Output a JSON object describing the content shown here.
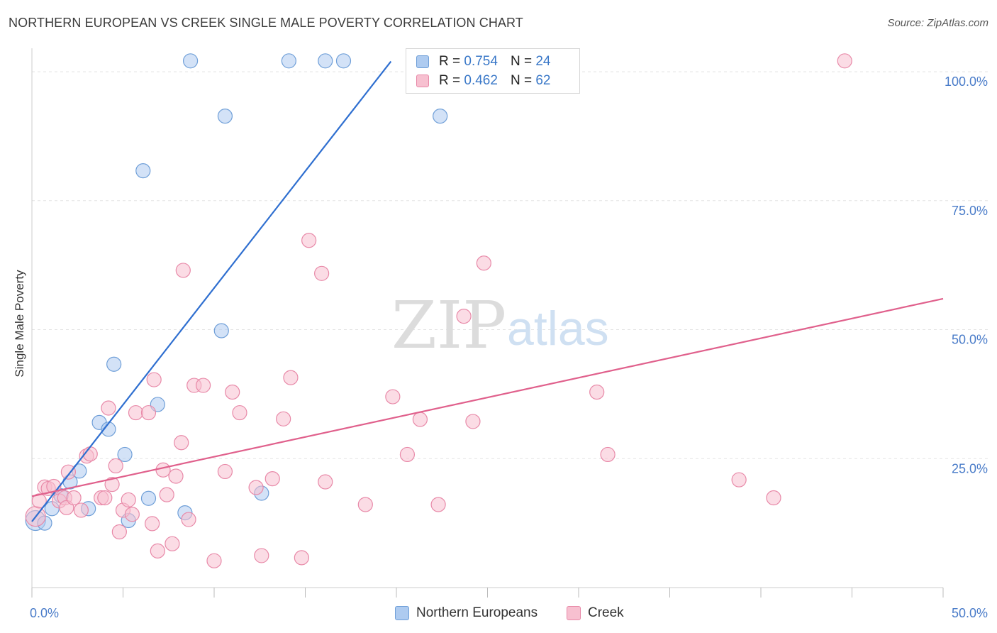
{
  "header": {
    "title": "NORTHERN EUROPEAN VS CREEK SINGLE MALE POVERTY CORRELATION CHART",
    "source": "Source: ZipAtlas.com"
  },
  "watermark": {
    "zip": "ZIP",
    "atlas": "atlas"
  },
  "legend": {
    "rows": [
      {
        "r_label": "R =",
        "r_value": "0.754",
        "n_label": "N =",
        "n_value": "24",
        "color": "#aecbf0",
        "border": "#6f9fd8"
      },
      {
        "r_label": "R =",
        "r_value": "0.462",
        "n_label": "N =",
        "n_value": "62",
        "color": "#f7c0d0",
        "border": "#e889a8"
      }
    ]
  },
  "bottom_legend": [
    {
      "label": "Northern Europeans",
      "color": "#aecbf0",
      "border": "#6f9fd8"
    },
    {
      "label": "Creek",
      "color": "#f7c0d0",
      "border": "#e889a8"
    }
  ],
  "chart_data": {
    "type": "scatter",
    "title": "NORTHERN EUROPEAN VS CREEK SINGLE MALE POVERTY CORRELATION CHART",
    "xlabel": "",
    "ylabel": "Single Male Poverty",
    "xlim": [
      0,
      50
    ],
    "ylim": [
      0,
      104
    ],
    "x_tick_labels": [
      {
        "value": 0,
        "label": "0.0%"
      },
      {
        "value": 50,
        "label": "50.0%"
      }
    ],
    "y_tick_labels": [
      {
        "value": 25,
        "label": "25.0%"
      },
      {
        "value": 50,
        "label": "50.0%"
      },
      {
        "value": 75,
        "label": "75.0%"
      },
      {
        "value": 100,
        "label": "100.0%"
      }
    ],
    "grid": true,
    "legend_position": "top-center",
    "series": [
      {
        "name": "Northern Europeans",
        "color": "#aecbf0",
        "stroke": "#6f9fd8",
        "trend_color": "#2f6fd0",
        "trend": {
          "x": [
            0.0,
            19.7
          ],
          "y": [
            12.8,
            102.0
          ]
        },
        "points": [
          [
            0.2,
            13.0,
            14
          ],
          [
            0.7,
            12.5,
            10
          ],
          [
            1.1,
            15.3,
            10
          ],
          [
            1.6,
            17.8,
            10
          ],
          [
            2.1,
            20.5,
            10
          ],
          [
            2.6,
            22.6,
            10
          ],
          [
            3.1,
            15.3,
            10
          ],
          [
            3.7,
            32.0,
            10
          ],
          [
            4.2,
            30.7,
            10
          ],
          [
            4.5,
            43.3,
            10
          ],
          [
            5.1,
            25.8,
            10
          ],
          [
            5.3,
            13.0,
            10
          ],
          [
            6.4,
            17.3,
            10
          ],
          [
            6.9,
            35.5,
            10
          ],
          [
            6.1,
            80.8,
            10
          ],
          [
            8.4,
            14.5,
            10
          ],
          [
            8.7,
            102.1,
            10
          ],
          [
            10.4,
            49.8,
            10
          ],
          [
            10.6,
            91.4,
            10
          ],
          [
            12.6,
            18.3,
            10
          ],
          [
            14.1,
            102.1,
            10
          ],
          [
            16.1,
            102.1,
            10
          ],
          [
            17.1,
            102.1,
            10
          ],
          [
            22.4,
            91.4,
            10
          ]
        ]
      },
      {
        "name": "Creek",
        "color": "#f7c0d0",
        "stroke": "#e889a8",
        "trend_color": "#e0608c",
        "trend": {
          "x": [
            0.0,
            50.0
          ],
          "y": [
            17.7,
            56.0
          ]
        },
        "points": [
          [
            0.2,
            13.8,
            14
          ],
          [
            0.4,
            16.8,
            10
          ],
          [
            0.7,
            19.5,
            10
          ],
          [
            0.9,
            19.2,
            10
          ],
          [
            1.2,
            19.6,
            10
          ],
          [
            1.5,
            16.8,
            10
          ],
          [
            1.8,
            17.4,
            10
          ],
          [
            1.9,
            15.5,
            10
          ],
          [
            2.0,
            22.4,
            10
          ],
          [
            2.3,
            17.4,
            10
          ],
          [
            2.7,
            15.0,
            10
          ],
          [
            3.0,
            25.5,
            10
          ],
          [
            3.2,
            25.9,
            10
          ],
          [
            3.8,
            17.4,
            10
          ],
          [
            4.0,
            17.4,
            10
          ],
          [
            4.2,
            34.8,
            10
          ],
          [
            4.4,
            20.0,
            10
          ],
          [
            4.6,
            23.6,
            10
          ],
          [
            4.8,
            10.8,
            10
          ],
          [
            5.0,
            15.0,
            10
          ],
          [
            5.3,
            17.0,
            10
          ],
          [
            5.5,
            14.2,
            10
          ],
          [
            5.7,
            33.9,
            10
          ],
          [
            6.4,
            33.9,
            10
          ],
          [
            6.6,
            12.4,
            10
          ],
          [
            6.7,
            40.3,
            10
          ],
          [
            7.2,
            22.8,
            10
          ],
          [
            7.4,
            18.0,
            10
          ],
          [
            7.7,
            8.5,
            10
          ],
          [
            7.9,
            21.6,
            10
          ],
          [
            8.2,
            28.1,
            10
          ],
          [
            8.3,
            61.5,
            10
          ],
          [
            8.6,
            13.2,
            10
          ],
          [
            8.9,
            39.2,
            10
          ],
          [
            9.4,
            39.2,
            10
          ],
          [
            10.0,
            5.2,
            10
          ],
          [
            10.6,
            22.5,
            10
          ],
          [
            11.0,
            37.9,
            10
          ],
          [
            11.4,
            33.9,
            10
          ],
          [
            12.3,
            19.4,
            10
          ],
          [
            12.6,
            6.2,
            10
          ],
          [
            13.2,
            21.1,
            10
          ],
          [
            13.8,
            32.7,
            10
          ],
          [
            14.2,
            40.7,
            10
          ],
          [
            14.8,
            5.8,
            10
          ],
          [
            15.2,
            67.3,
            10
          ],
          [
            15.9,
            60.9,
            10
          ],
          [
            16.1,
            20.5,
            10
          ],
          [
            18.3,
            16.1,
            10
          ],
          [
            19.8,
            37.0,
            10
          ],
          [
            20.6,
            25.8,
            10
          ],
          [
            21.3,
            32.6,
            10
          ],
          [
            22.3,
            16.1,
            10
          ],
          [
            23.7,
            52.6,
            10
          ],
          [
            24.2,
            32.2,
            10
          ],
          [
            24.8,
            62.9,
            10
          ],
          [
            31.0,
            37.9,
            10
          ],
          [
            31.6,
            25.8,
            10
          ],
          [
            38.8,
            20.9,
            10
          ],
          [
            40.7,
            17.4,
            10
          ],
          [
            44.6,
            102.1,
            10
          ],
          [
            6.9,
            7.1,
            10
          ]
        ]
      }
    ]
  }
}
